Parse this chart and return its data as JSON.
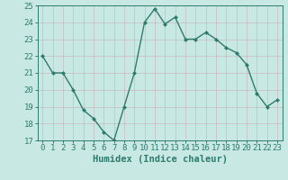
{
  "x": [
    0,
    1,
    2,
    3,
    4,
    5,
    6,
    7,
    8,
    9,
    10,
    11,
    12,
    13,
    14,
    15,
    16,
    17,
    18,
    19,
    20,
    21,
    22,
    23
  ],
  "y": [
    22,
    21,
    21,
    20.0,
    18.8,
    18.3,
    17.5,
    17.0,
    19.0,
    21.0,
    24.0,
    24.8,
    23.9,
    24.3,
    23.0,
    23.0,
    23.4,
    23.0,
    22.5,
    22.2,
    21.5,
    19.8,
    19.0,
    19.4
  ],
  "line_color": "#2e7b6e",
  "marker_color": "#2e7b6e",
  "bg_color": "#c8e8e4",
  "grid_color": "#b0d4d0",
  "xlabel": "Humidex (Indice chaleur)",
  "xlim": [
    -0.5,
    23.5
  ],
  "ylim": [
    17,
    25
  ],
  "yticks": [
    17,
    18,
    19,
    20,
    21,
    22,
    23,
    24,
    25
  ],
  "xticks": [
    0,
    1,
    2,
    3,
    4,
    5,
    6,
    7,
    8,
    9,
    10,
    11,
    12,
    13,
    14,
    15,
    16,
    17,
    18,
    19,
    20,
    21,
    22,
    23
  ],
  "tick_fontsize": 6.5,
  "xlabel_fontsize": 7.5,
  "linewidth": 1.0,
  "markersize": 2.5
}
